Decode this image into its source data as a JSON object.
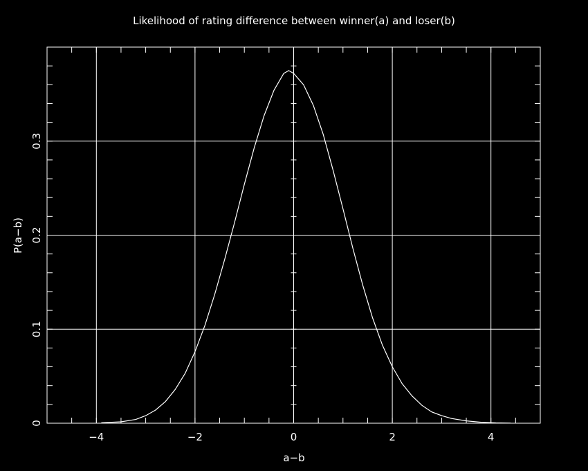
{
  "chart_data": {
    "type": "line",
    "title": "Likelihood of rating difference between winner(a) and loser(b)",
    "xlabel": "a−b",
    "ylabel": "P(a−b)",
    "xlim": [
      -5,
      5
    ],
    "ylim": [
      0,
      0.4
    ],
    "grid": true,
    "x_ticks": [
      -4,
      -2,
      0,
      2,
      4
    ],
    "x_tick_labels": [
      "−4",
      "−2",
      "0",
      "2",
      "4"
    ],
    "y_ticks": [
      0,
      0.1,
      0.2,
      0.3
    ],
    "y_tick_labels": [
      "0",
      "0.1",
      "0.2",
      "0.3"
    ],
    "series": [
      {
        "x": [
          -3.9,
          -3.5,
          -3.2,
          -3.0,
          -2.8,
          -2.6,
          -2.4,
          -2.2,
          -2.0,
          -1.8,
          -1.6,
          -1.4,
          -1.2,
          -1.0,
          -0.8,
          -0.6,
          -0.4,
          -0.2,
          -0.1,
          0.0,
          0.2,
          0.4,
          0.6,
          0.8,
          1.0,
          1.2,
          1.4,
          1.6,
          1.8,
          2.0,
          2.2,
          2.4,
          2.6,
          2.8,
          3.0,
          3.2,
          3.5,
          3.8,
          4.1,
          4.4
        ],
        "y": [
          0.0005,
          0.0015,
          0.004,
          0.008,
          0.014,
          0.023,
          0.036,
          0.053,
          0.076,
          0.104,
          0.137,
          0.174,
          0.213,
          0.254,
          0.293,
          0.327,
          0.354,
          0.372,
          0.375,
          0.372,
          0.36,
          0.338,
          0.307,
          0.269,
          0.228,
          0.186,
          0.147,
          0.112,
          0.083,
          0.06,
          0.042,
          0.029,
          0.019,
          0.012,
          0.008,
          0.005,
          0.0025,
          0.001,
          0.0004,
          0.0001
        ]
      }
    ]
  }
}
